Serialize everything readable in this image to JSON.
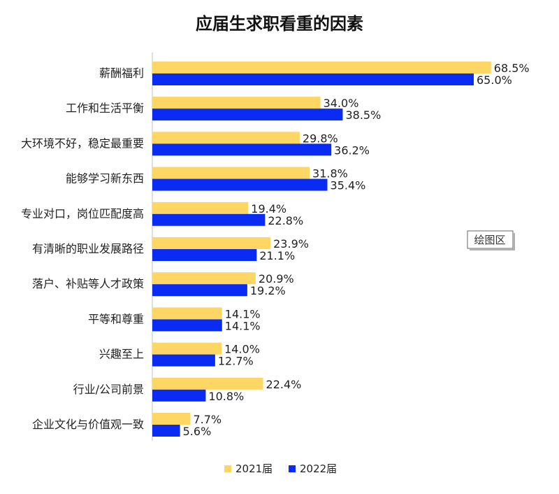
{
  "chart_data": {
    "type": "bar",
    "orientation": "horizontal",
    "title": "应届生求职看重的因素",
    "categories": [
      "薪酬福利",
      "工作和生活平衡",
      "大环境不好，稳定最重要",
      "能够学习新东西",
      "专业对口，岗位匹配度高",
      "有清晰的职业发展路径",
      "落户、补贴等人才政策",
      "平等和尊重",
      "兴趣至上",
      "行业/公司前景",
      "企业文化与价值观一致"
    ],
    "series": [
      {
        "name": "2021届",
        "color": "#FDD663",
        "values": [
          68.5,
          34.0,
          29.8,
          31.8,
          19.4,
          23.9,
          20.9,
          14.1,
          14.0,
          22.4,
          7.7
        ],
        "labels": [
          "68.5%",
          "34.0%",
          "29.8%",
          "31.8%",
          "19.4%",
          "23.9%",
          "20.9%",
          "14.1%",
          "14.0%",
          "22.4%",
          "7.7%"
        ]
      },
      {
        "name": "2022届",
        "color": "#0A2BF2",
        "values": [
          65.0,
          38.5,
          36.2,
          35.4,
          22.8,
          21.1,
          19.2,
          14.1,
          12.7,
          10.8,
          5.6
        ],
        "labels": [
          "65.0%",
          "38.5%",
          "36.2%",
          "35.4%",
          "22.8%",
          "21.1%",
          "19.2%",
          "14.1%",
          "12.7%",
          "10.8%",
          "5.6%"
        ]
      }
    ],
    "xlim": [
      0,
      70
    ],
    "legend_position": "bottom",
    "grid": false
  },
  "tooltip": {
    "label": "绘图区"
  }
}
